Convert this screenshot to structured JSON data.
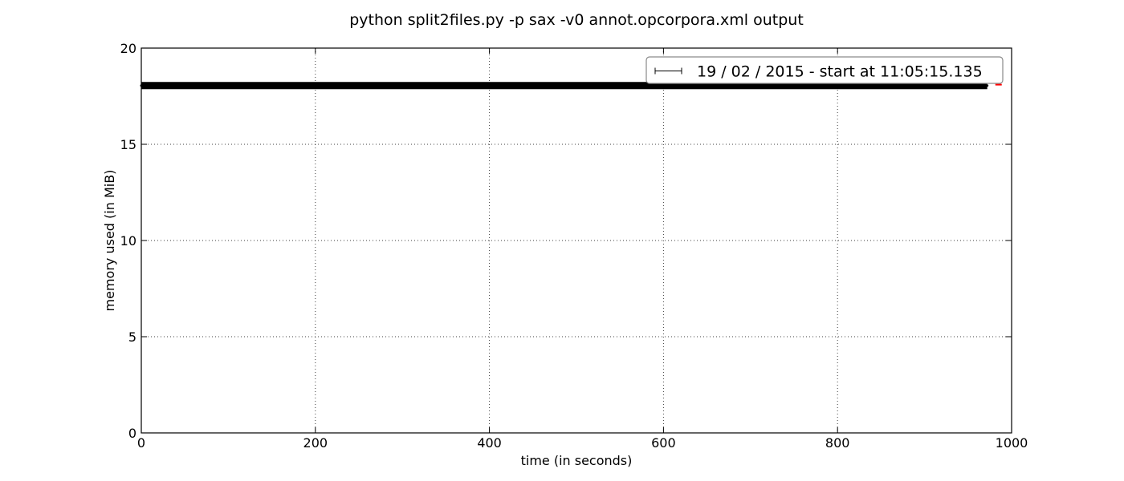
{
  "chart_data": {
    "type": "line",
    "title": "python split2files.py -p sax -v0 annot.opcorpora.xml output",
    "xlabel": "time (in seconds)",
    "ylabel": "memory used (in MiB)",
    "xlim": [
      0,
      1000
    ],
    "ylim": [
      0,
      20
    ],
    "xticks": [
      0,
      200,
      400,
      600,
      800,
      1000
    ],
    "yticks": [
      0,
      5,
      10,
      15,
      20
    ],
    "grid": true,
    "legend": {
      "placement": "top-right",
      "entries": [
        "19 / 02 / 2015 - start at 11:05:15.135"
      ]
    },
    "series": [
      {
        "name": "19 / 02 / 2015 - start at 11:05:15.135",
        "color": "#000000",
        "x": [
          0,
          100,
          200,
          300,
          400,
          500,
          600,
          700,
          800,
          900,
          972
        ],
        "y": [
          18.05,
          18.05,
          18.05,
          18.05,
          18.05,
          18.05,
          18.05,
          18.05,
          18.05,
          18.05,
          18.05
        ]
      }
    ],
    "annotations": [
      {
        "kind": "endpoint-marker",
        "color": "#ff0000",
        "x": 985,
        "y": 18.1
      }
    ]
  }
}
